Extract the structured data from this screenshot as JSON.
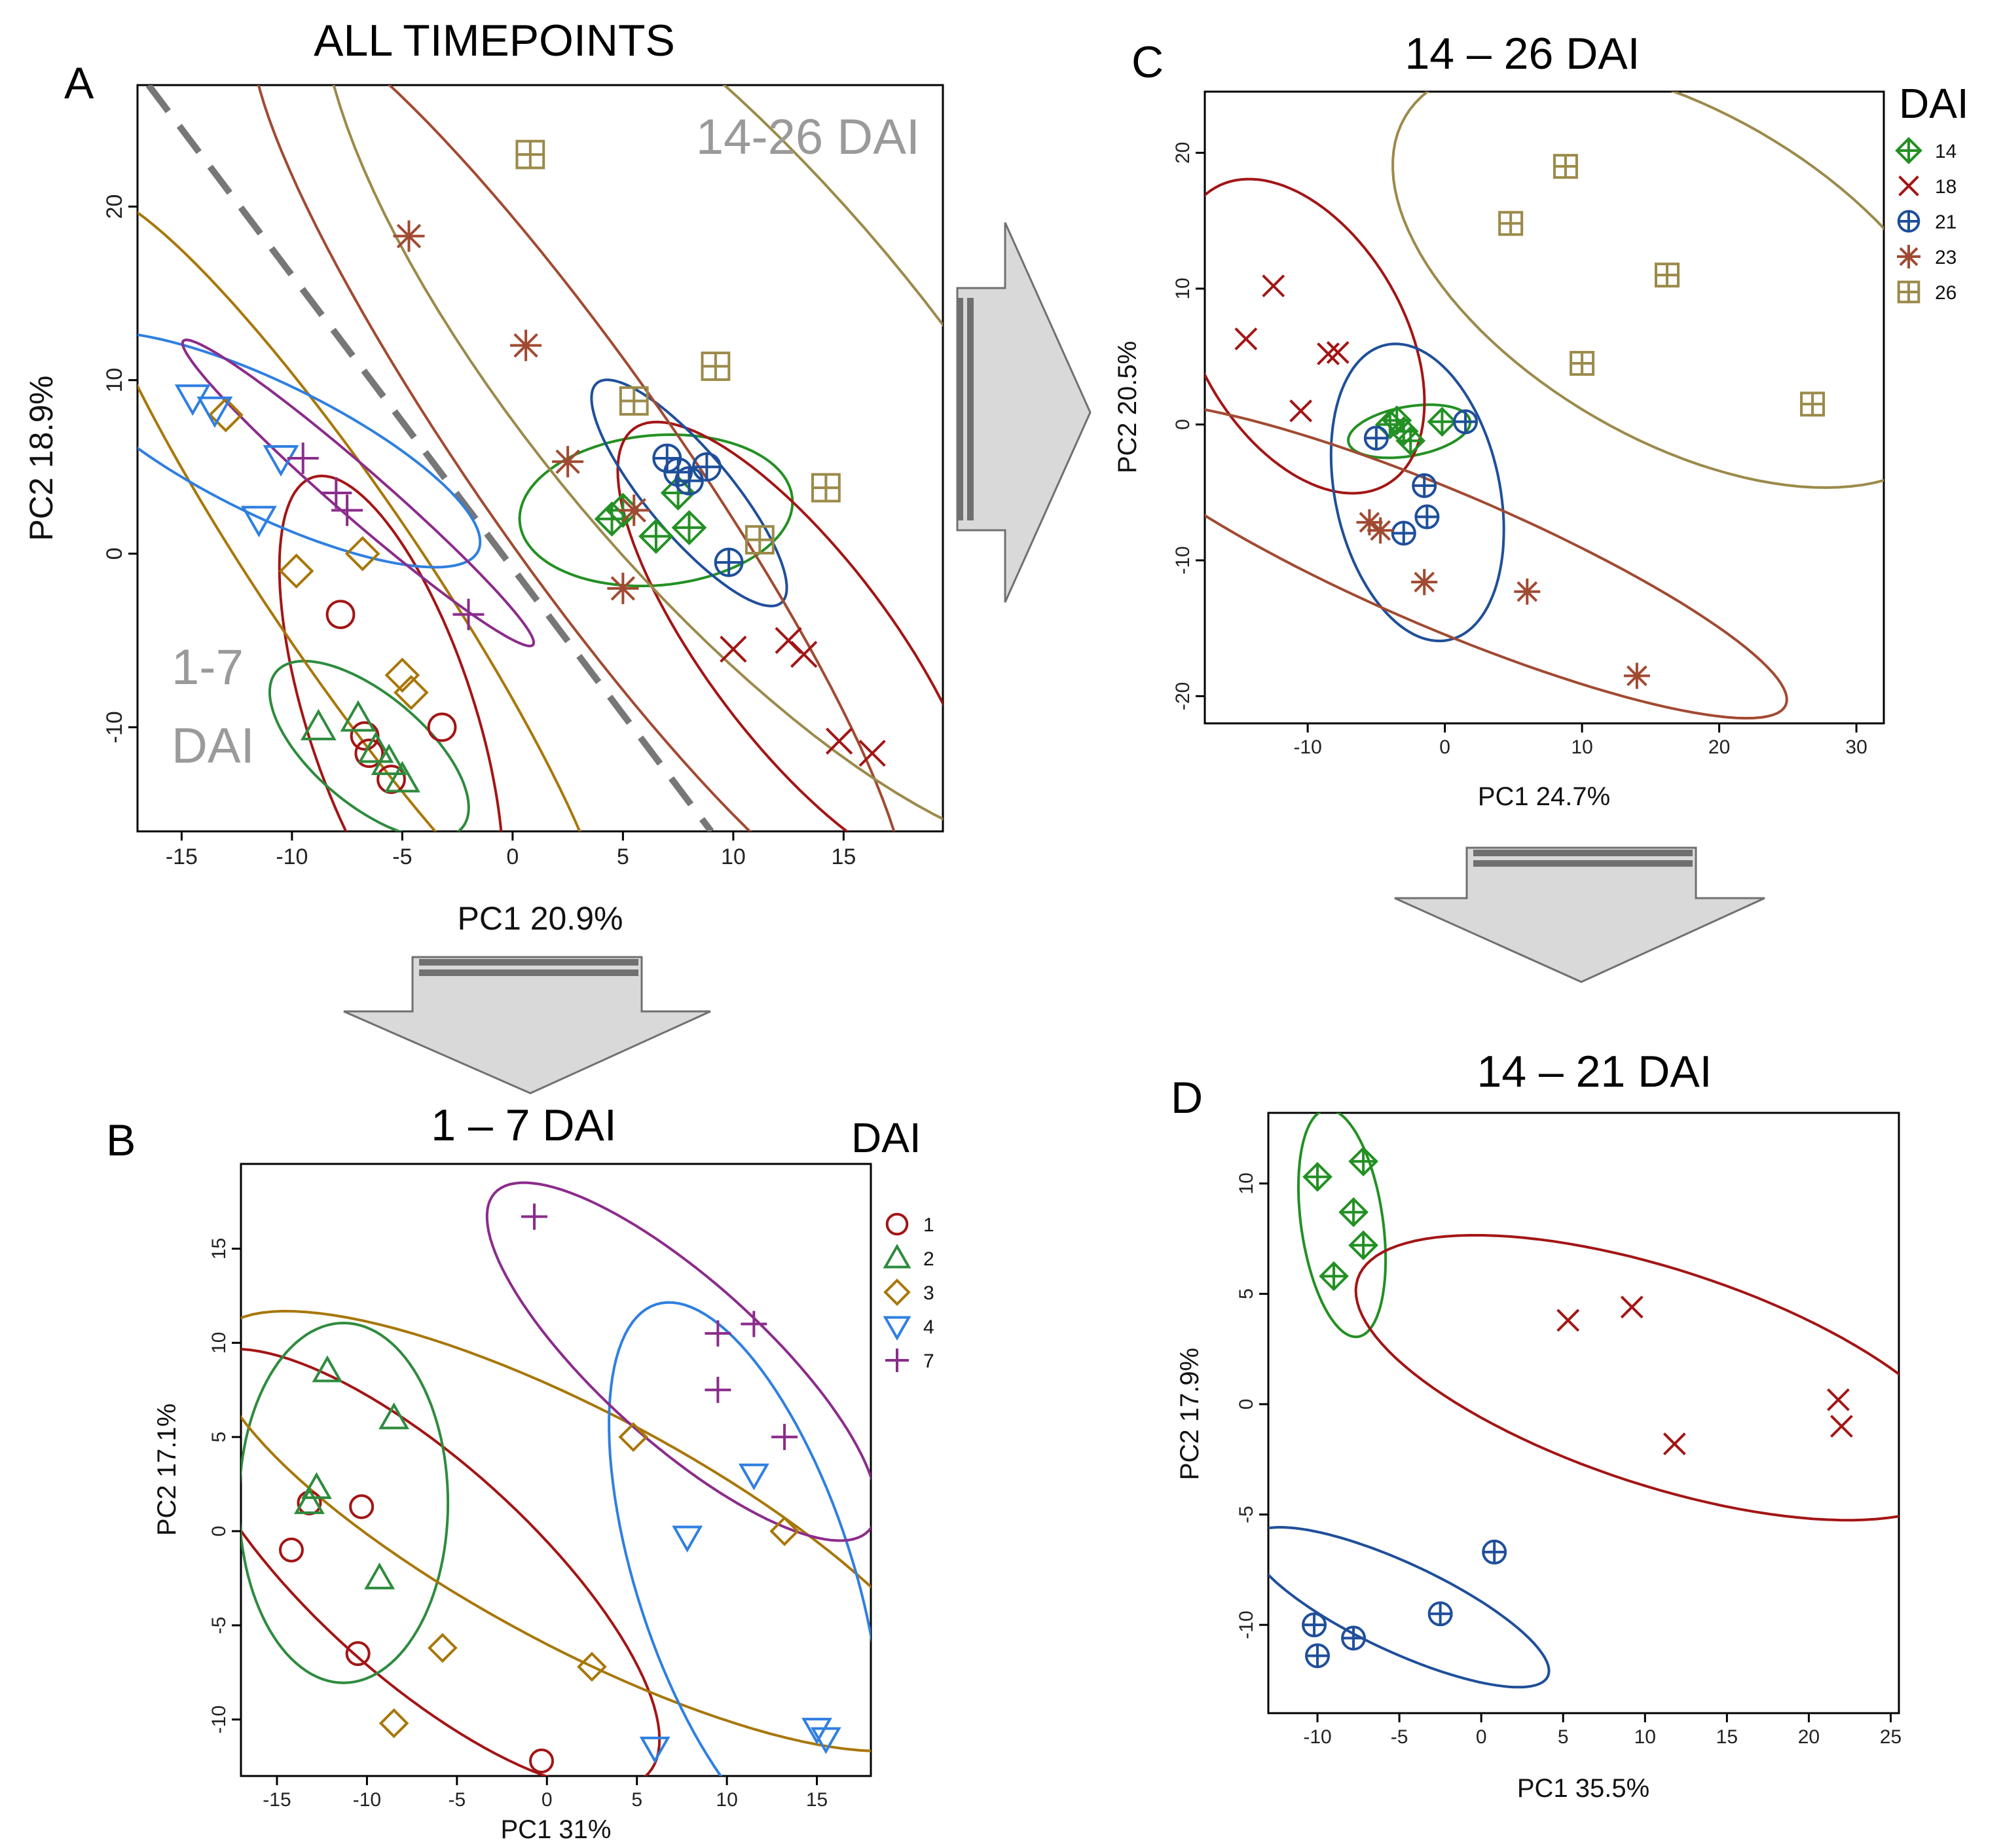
{
  "colors": {
    "1": "#a31515",
    "2": "#2e8b3e",
    "3": "#a8770a",
    "4": "#2f7fe0",
    "7": "#8b2c8b",
    "14": "#239023",
    "18": "#a31515",
    "21": "#1f4f9a",
    "23": "#a14a32",
    "26": "#9b8a4a",
    "divider": "#777777",
    "arrow_fill": "#d9d9d9",
    "arrow_stroke": "#707070"
  },
  "chart_data": [
    {
      "panel": "A",
      "type": "scatter",
      "title": "ALL TIMEPOINTS",
      "xlabel": "PC1 20.9%",
      "ylabel": "PC2 18.9%",
      "xlim": [
        -17,
        19.5
      ],
      "ylim": [
        -16,
        27
      ],
      "xticks": [
        -15,
        -10,
        -5,
        0,
        5,
        10,
        15
      ],
      "yticks": [
        -10,
        0,
        10,
        20
      ],
      "annotations": [
        {
          "text": "14-26 DAI",
          "pos": "top-right"
        },
        {
          "text": "1-7",
          "pos": "bottom-left"
        },
        {
          "text": "DAI",
          "pos": "bottom-left"
        }
      ],
      "divider_line": {
        "x": [
          -16.5,
          9
        ],
        "y": [
          27,
          -16
        ]
      },
      "series": [
        {
          "name": "1",
          "marker": "circle",
          "points": [
            [
              -7.8,
              -3.5
            ],
            [
              -6.7,
              -10.5
            ],
            [
              -6.5,
              -11.5
            ],
            [
              -5.5,
              -13
            ],
            [
              -3.2,
              -10
            ]
          ],
          "ellipse": {
            "cx": -5.5,
            "cy": -9.5,
            "rx": 11.5,
            "ry": 3.8,
            "angle": -72
          }
        },
        {
          "name": "2",
          "marker": "triangle-up",
          "points": [
            [
              -8.8,
              -10
            ],
            [
              -7,
              -9.5
            ],
            [
              -6.2,
              -11.3
            ],
            [
              -5.6,
              -12
            ],
            [
              -5,
              -13
            ]
          ],
          "ellipse": {
            "cx": -6.5,
            "cy": -11.3,
            "rx": 5.5,
            "ry": 2.5,
            "angle": -40
          }
        },
        {
          "name": "3",
          "marker": "diamond",
          "points": [
            [
              -13,
              8
            ],
            [
              -9.8,
              -1
            ],
            [
              -6.8,
              0
            ],
            [
              -5,
              -7
            ],
            [
              -4.6,
              -8
            ]
          ],
          "ellipse": {
            "cx": -7.6,
            "cy": -1.5,
            "rx": 21,
            "ry": 3.6,
            "angle": -56
          }
        },
        {
          "name": "4",
          "marker": "triangle-down",
          "points": [
            [
              -14.5,
              9
            ],
            [
              -13.5,
              8.3
            ],
            [
              -10.5,
              5.5
            ],
            [
              -11.5,
              2
            ]
          ],
          "ellipse": {
            "cx": -11,
            "cy": 6,
            "rx": 10.5,
            "ry": 3,
            "angle": -26
          }
        },
        {
          "name": "7",
          "marker": "plus",
          "points": [
            [
              -9.5,
              5.5
            ],
            [
              -8,
              3.5
            ],
            [
              -7.5,
              2.5
            ],
            [
              -2,
              -3.5
            ]
          ],
          "ellipse": {
            "cx": -7,
            "cy": 3.5,
            "rx": 10.5,
            "ry": 1.1,
            "angle": -41
          }
        },
        {
          "name": "14",
          "marker": "diamond-plus",
          "points": [
            [
              4.5,
              2
            ],
            [
              6.5,
              1
            ],
            [
              7.5,
              3.5
            ],
            [
              8,
              1.5
            ],
            [
              5,
              2.5
            ]
          ],
          "ellipse": {
            "cx": 6.5,
            "cy": 2.5,
            "rx": 6.2,
            "ry": 3.4,
            "angle": 5
          }
        },
        {
          "name": "18",
          "marker": "x",
          "points": [
            [
              10,
              -5.5
            ],
            [
              12.5,
              -5
            ],
            [
              13.2,
              -5.8
            ],
            [
              14.8,
              -10.8
            ],
            [
              16.3,
              -11.5
            ]
          ],
          "ellipse": {
            "cx": 13,
            "cy": -5.5,
            "rx": 12.5,
            "ry": 4.2,
            "angle": -53
          }
        },
        {
          "name": "21",
          "marker": "circle-plus",
          "points": [
            [
              7,
              5.5
            ],
            [
              7.5,
              4.7
            ],
            [
              8,
              4.2
            ],
            [
              8.8,
              5
            ],
            [
              9.8,
              -0.5
            ]
          ],
          "ellipse": {
            "cx": 8,
            "cy": 3.5,
            "rx": 6.5,
            "ry": 1.9,
            "angle": -50
          }
        },
        {
          "name": "23",
          "marker": "asterisk",
          "points": [
            [
              -4.7,
              18.3
            ],
            [
              0.6,
              12
            ],
            [
              2.5,
              5.3
            ],
            [
              5.5,
              2.5
            ],
            [
              5,
              -2
            ]
          ],
          "ellipse": {
            "cx": 3,
            "cy": 5,
            "rx": 25,
            "ry": 4.5,
            "angle": -55
          }
        },
        {
          "name": "26",
          "marker": "square-plus",
          "points": [
            [
              0.8,
              23
            ],
            [
              5.5,
              8.8
            ],
            [
              9.2,
              10.8
            ],
            [
              11.2,
              0.8
            ],
            [
              14.2,
              3.8
            ]
          ],
          "ellipse": {
            "cx": 10,
            "cy": 10,
            "rx": 27,
            "ry": 9,
            "angle": -50
          }
        }
      ]
    },
    {
      "panel": "B",
      "type": "scatter",
      "title": "1 – 7 DAI",
      "xlabel": "PC1 31%",
      "ylabel": "PC2 17.1%",
      "xlim": [
        -17,
        18
      ],
      "ylim": [
        -13,
        19.5
      ],
      "xticks": [
        -15,
        -10,
        -5,
        0,
        5,
        10,
        15
      ],
      "yticks": [
        -10,
        -5,
        0,
        5,
        10,
        15
      ],
      "legend_title": "DAI",
      "legend": [
        "1",
        "2",
        "3",
        "4",
        "7"
      ],
      "series": [
        {
          "name": "1",
          "marker": "circle",
          "points": [
            [
              -14.2,
              -1
            ],
            [
              -13.2,
              1.5
            ],
            [
              -10.3,
              1.3
            ],
            [
              -10.5,
              -6.5
            ],
            [
              -0.3,
              -12.2
            ]
          ],
          "ellipse": {
            "cx": -7,
            "cy": -2,
            "rx": 17,
            "ry": 6,
            "angle": -42
          }
        },
        {
          "name": "2",
          "marker": "triangle-up",
          "points": [
            [
              -12.2,
              8.5
            ],
            [
              -13.2,
              1.5
            ],
            [
              -12.8,
              2.3
            ],
            [
              -8.5,
              6
            ],
            [
              -9.3,
              -2.5
            ]
          ],
          "ellipse": {
            "cx": -11.3,
            "cy": 1.5,
            "rx": 10,
            "ry": 5.8,
            "angle": -90
          }
        },
        {
          "name": "3",
          "marker": "diamond",
          "points": [
            [
              -8.5,
              -10.2
            ],
            [
              -5.8,
              -6.2
            ],
            [
              2.5,
              -7.2
            ],
            [
              4.8,
              5
            ],
            [
              13.2,
              0
            ]
          ],
          "ellipse": {
            "cx": 2,
            "cy": 0,
            "rx": 23,
            "ry": 6.5,
            "angle": -28
          }
        },
        {
          "name": "4",
          "marker": "triangle-down",
          "points": [
            [
              6,
              -11.5
            ],
            [
              7.8,
              -0.3
            ],
            [
              11.5,
              3
            ],
            [
              15,
              -10.5
            ],
            [
              15.5,
              -11
            ]
          ],
          "ellipse": {
            "cx": 11,
            "cy": -2.5,
            "rx": 16,
            "ry": 6,
            "angle": -72
          }
        },
        {
          "name": "7",
          "marker": "plus",
          "points": [
            [
              -0.7,
              16.7
            ],
            [
              9.5,
              10.5
            ],
            [
              11.5,
              11
            ],
            [
              9.5,
              7.5
            ],
            [
              13.2,
              5
            ]
          ],
          "ellipse": {
            "cx": 7.5,
            "cy": 9,
            "rx": 14,
            "ry": 4.5,
            "angle": -42
          }
        }
      ]
    },
    {
      "panel": "C",
      "type": "scatter",
      "title": "14 – 26 DAI",
      "xlabel": "PC1 24.7%",
      "ylabel": "PC2 20.5%",
      "xlim": [
        -17.5,
        32
      ],
      "ylim": [
        -22,
        24.5
      ],
      "xticks": [
        -10,
        0,
        10,
        20,
        30
      ],
      "yticks": [
        -20,
        -10,
        0,
        10,
        20
      ],
      "legend_title": "DAI",
      "legend": [
        "14",
        "18",
        "21",
        "23",
        "26"
      ],
      "series": [
        {
          "name": "14",
          "marker": "diamond-plus",
          "points": [
            [
              -3.5,
              0.3
            ],
            [
              -3,
              -0.5
            ],
            [
              -2.5,
              -1.2
            ],
            [
              -4,
              0
            ],
            [
              -0.2,
              0.2
            ]
          ],
          "ellipse": {
            "cx": -2.6,
            "cy": -0.5,
            "rx": 4.5,
            "ry": 1.8,
            "angle": 10
          }
        },
        {
          "name": "18",
          "marker": "x",
          "points": [
            [
              -12.5,
              10.2
            ],
            [
              -14.5,
              6.3
            ],
            [
              -8.5,
              5.2
            ],
            [
              -7.8,
              5.3
            ],
            [
              -10.5,
              1
            ]
          ],
          "ellipse": {
            "cx": -10.5,
            "cy": 6.5,
            "rx": 12.5,
            "ry": 7.5,
            "angle": -60
          }
        },
        {
          "name": "21",
          "marker": "circle-plus",
          "points": [
            [
              -5,
              -1
            ],
            [
              1.5,
              0.2
            ],
            [
              -1.5,
              -4.5
            ],
            [
              -1.3,
              -6.8
            ],
            [
              -3,
              -8
            ]
          ],
          "ellipse": {
            "cx": -2,
            "cy": -5,
            "rx": 11,
            "ry": 6,
            "angle": -78
          }
        },
        {
          "name": "23",
          "marker": "asterisk",
          "points": [
            [
              -5.5,
              -7.2
            ],
            [
              -4.7,
              -7.8
            ],
            [
              -1.5,
              -11.6
            ],
            [
              6,
              -12.3
            ],
            [
              14,
              -18.5
            ]
          ],
          "ellipse": {
            "cx": 0,
            "cy": -10,
            "rx": 27,
            "ry": 5,
            "angle": -23
          }
        },
        {
          "name": "26",
          "marker": "square-plus",
          "points": [
            [
              4.8,
              14.8
            ],
            [
              8.8,
              19
            ],
            [
              10,
              4.5
            ],
            [
              16.2,
              11
            ],
            [
              26.8,
              1.5
            ]
          ],
          "ellipse": {
            "cx": 17,
            "cy": 11,
            "rx": 23,
            "ry": 12,
            "angle": -30
          }
        }
      ]
    },
    {
      "panel": "D",
      "type": "scatter",
      "title": "14 – 21 DAI",
      "xlabel": "PC1 35.5%",
      "ylabel": "PC2 17.9%",
      "xlim": [
        -13,
        25.5
      ],
      "ylim": [
        -14,
        13.2
      ],
      "xticks": [
        -10,
        -5,
        0,
        5,
        10,
        15,
        20,
        25
      ],
      "yticks": [
        -10,
        -5,
        0,
        5,
        10
      ],
      "series": [
        {
          "name": "14",
          "marker": "diamond-plus",
          "points": [
            [
              -10,
              10.3
            ],
            [
              -7.2,
              11
            ],
            [
              -7.8,
              8.7
            ],
            [
              -7.2,
              7.2
            ],
            [
              -9,
              5.8
            ]
          ],
          "ellipse": {
            "cx": -8.5,
            "cy": 8.2,
            "rx": 7,
            "ry": 2.5,
            "angle": -82
          }
        },
        {
          "name": "18",
          "marker": "x",
          "points": [
            [
              5.3,
              3.8
            ],
            [
              9.2,
              4.4
            ],
            [
              11.8,
              -1.8
            ],
            [
              21.8,
              0.2
            ],
            [
              22,
              -1
            ]
          ],
          "ellipse": {
            "cx": 11,
            "cy": 1.2,
            "rx": 19.5,
            "ry": 6.6,
            "angle": -18
          }
        },
        {
          "name": "21",
          "marker": "circle-plus",
          "points": [
            [
              -10.2,
              -10
            ],
            [
              -10,
              -11.4
            ],
            [
              -7.8,
              -10.6
            ],
            [
              -2.5,
              -9.5
            ],
            [
              0.8,
              -6.7
            ]
          ],
          "ellipse": {
            "cx": -5,
            "cy": -9.2,
            "rx": 10,
            "ry": 2.7,
            "angle": -25
          }
        }
      ]
    }
  ]
}
